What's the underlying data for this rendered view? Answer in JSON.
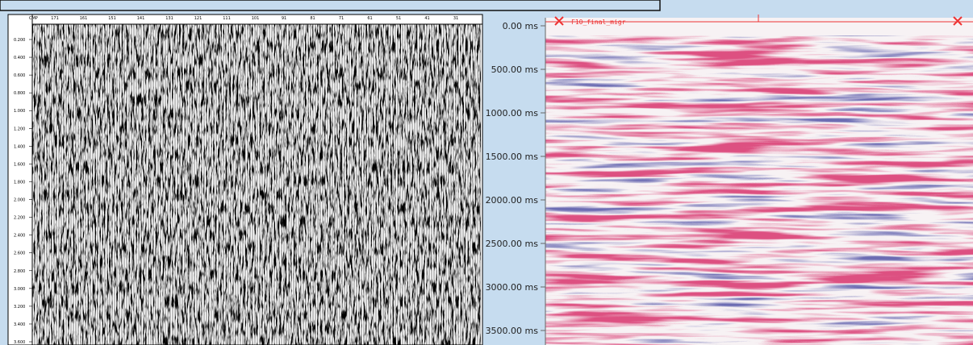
{
  "left_panel": {
    "header_label": "CMP",
    "cmp_labels": [
      "171",
      "161",
      "151",
      "141",
      "131",
      "121",
      "111",
      "101",
      "91",
      "81",
      "71",
      "61",
      "51",
      "41",
      "31"
    ],
    "time_labels": [
      "0.200",
      "0.400",
      "0.600",
      "0.800",
      "1.000",
      "1.200",
      "1.400",
      "1.600",
      "1.800",
      "2.000",
      "2.200",
      "2.400",
      "2.600",
      "2.800",
      "3.000",
      "3.200",
      "3.400",
      "3.600"
    ]
  },
  "right_panel": {
    "trace_label": "F10_final_migr",
    "time_labels": [
      "0.00 ms",
      "500.00 ms",
      "1000.00 ms",
      "1500.00 ms",
      "2000.00 ms",
      "2500.00 ms",
      "3000.00 ms",
      "3500.00 ms"
    ]
  }
}
